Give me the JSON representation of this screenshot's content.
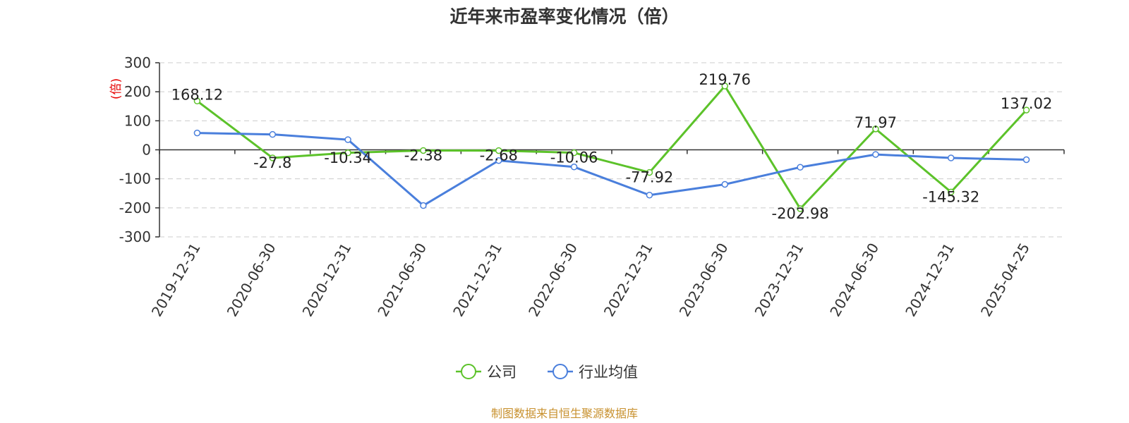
{
  "chart_data": {
    "type": "line",
    "title": "近年来市盈率变化情况（倍）",
    "ylabel": "(倍)",
    "xlabel": "",
    "ylim": [
      -300,
      300
    ],
    "yticks": [
      300,
      200,
      100,
      0,
      -100,
      -200,
      -300
    ],
    "categories": [
      "2019-12-31",
      "2020-06-30",
      "2020-12-31",
      "2021-06-30",
      "2021-12-31",
      "2022-06-30",
      "2022-12-31",
      "2023-06-30",
      "2023-12-31",
      "2024-06-30",
      "2024-12-31",
      "2025-04-25"
    ],
    "grid": true,
    "legend_position": "bottom",
    "series": [
      {
        "name": "公司",
        "color": "#5cc22a",
        "values": [
          168.12,
          -27.8,
          -10.34,
          -2.38,
          -2.68,
          -10.06,
          -77.92,
          219.76,
          -202.98,
          71.97,
          -145.32,
          137.02
        ],
        "labels": [
          "168.12",
          "-27.8",
          "-10.34",
          "-2.38",
          "-2.68",
          "-10.06",
          "-77.92",
          "219.76",
          "-202.98",
          "71.97",
          "-145.32",
          "137.02"
        ]
      },
      {
        "name": "行业均值",
        "color": "#4a7fdc",
        "values": [
          58,
          53,
          35,
          -192,
          -37,
          -59,
          -156,
          -119,
          -60,
          -16,
          -28,
          -34
        ]
      }
    ]
  },
  "source_text": "制图数据来自恒生聚源数据库"
}
